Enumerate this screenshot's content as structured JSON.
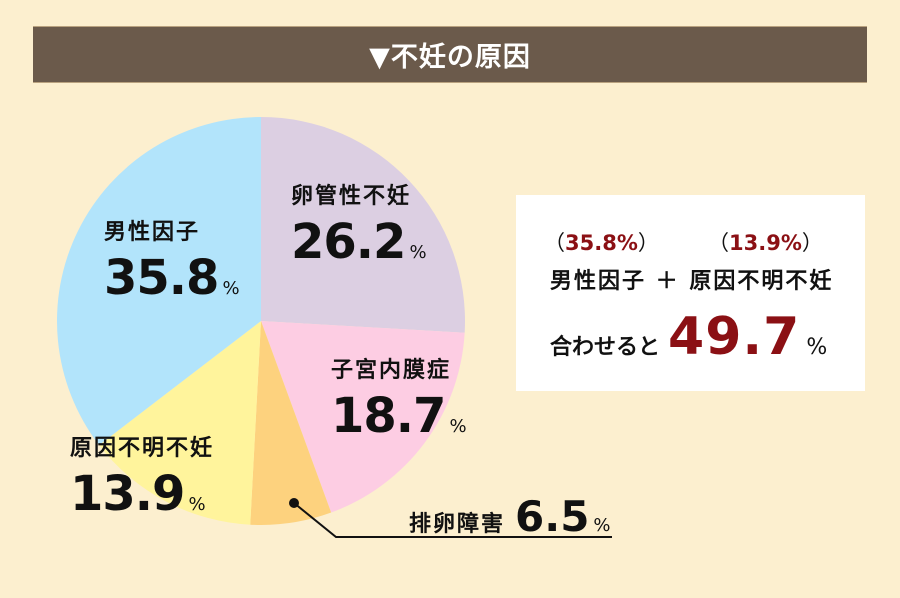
{
  "header": {
    "title": "▼不妊の原因"
  },
  "chart_data": {
    "type": "pie",
    "title": "▼不妊の原因",
    "unit": "%",
    "start_angle": "12 o'clock, clockwise",
    "categories": [
      "卵管性不妊",
      "子宮内膜症",
      "排卵障害",
      "原因不明不妊",
      "男性因子"
    ],
    "values": [
      26.2,
      18.7,
      6.5,
      13.9,
      35.8
    ],
    "colors": [
      "#dccfe2",
      "#fdcde3",
      "#fdd27e",
      "#fff49c",
      "#b2e4fb"
    ]
  },
  "labels": {
    "tubal": {
      "name": "卵管性不妊",
      "value": "26.2",
      "unit": "%"
    },
    "endometriosis": {
      "name": "子宮内膜症",
      "value": "18.7",
      "unit": "%"
    },
    "ovulation": {
      "name": "排卵障害",
      "value": "6.5",
      "unit": "%"
    },
    "unexplained": {
      "name": "原因不明不妊",
      "value": "13.9",
      "unit": "%"
    },
    "male": {
      "name": "男性因子",
      "value": "35.8",
      "unit": "%"
    }
  },
  "summary": {
    "left_paren_open": "（",
    "left_value": "35.8%",
    "left_paren_close": "）",
    "right_paren_open": "（",
    "right_value": "13.9%",
    "right_paren_close": "）",
    "formula": "男性因子 ＋ 原因不明不妊",
    "lead": "合わせると",
    "total": "49.7",
    "total_unit": "%"
  },
  "colors": {
    "background": "#fcefcf",
    "title_bar": "#6b5a4b",
    "accent_red": "#8b1014"
  }
}
